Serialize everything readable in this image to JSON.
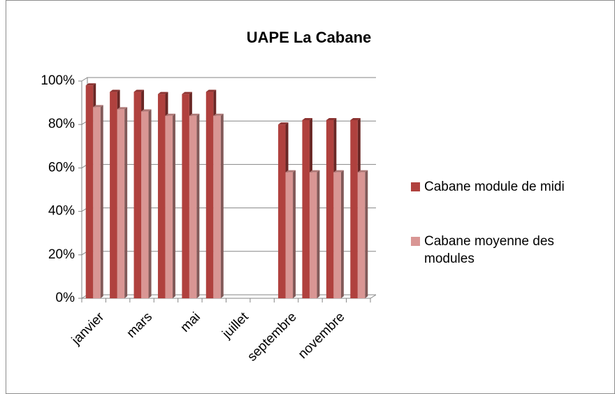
{
  "chart_data": {
    "type": "bar3d",
    "title": "UAPE La Cabane",
    "categories": [
      "janvier",
      null,
      "mars",
      null,
      "mai",
      null,
      "juillet",
      null,
      "septembre",
      null,
      "novembre",
      null
    ],
    "series": [
      {
        "name": "Cabane module de midi",
        "color": "#b0413e",
        "values": [
          98,
          95,
          95,
          94,
          94,
          95,
          null,
          null,
          80,
          82,
          82,
          82
        ]
      },
      {
        "name": "Cabane moyenne des modules",
        "color": "#d99694",
        "values": [
          88,
          87,
          86,
          84,
          84,
          84,
          null,
          null,
          58,
          58,
          58,
          58
        ]
      }
    ],
    "ylim": [
      0,
      100
    ],
    "yticks": [
      {
        "value": 0,
        "label": "0%"
      },
      {
        "value": 20,
        "label": "20%"
      },
      {
        "value": 40,
        "label": "40%"
      },
      {
        "value": 60,
        "label": "60%"
      },
      {
        "value": 80,
        "label": "80%"
      },
      {
        "value": 100,
        "label": "100%"
      }
    ],
    "grid": true,
    "legend": "right"
  }
}
